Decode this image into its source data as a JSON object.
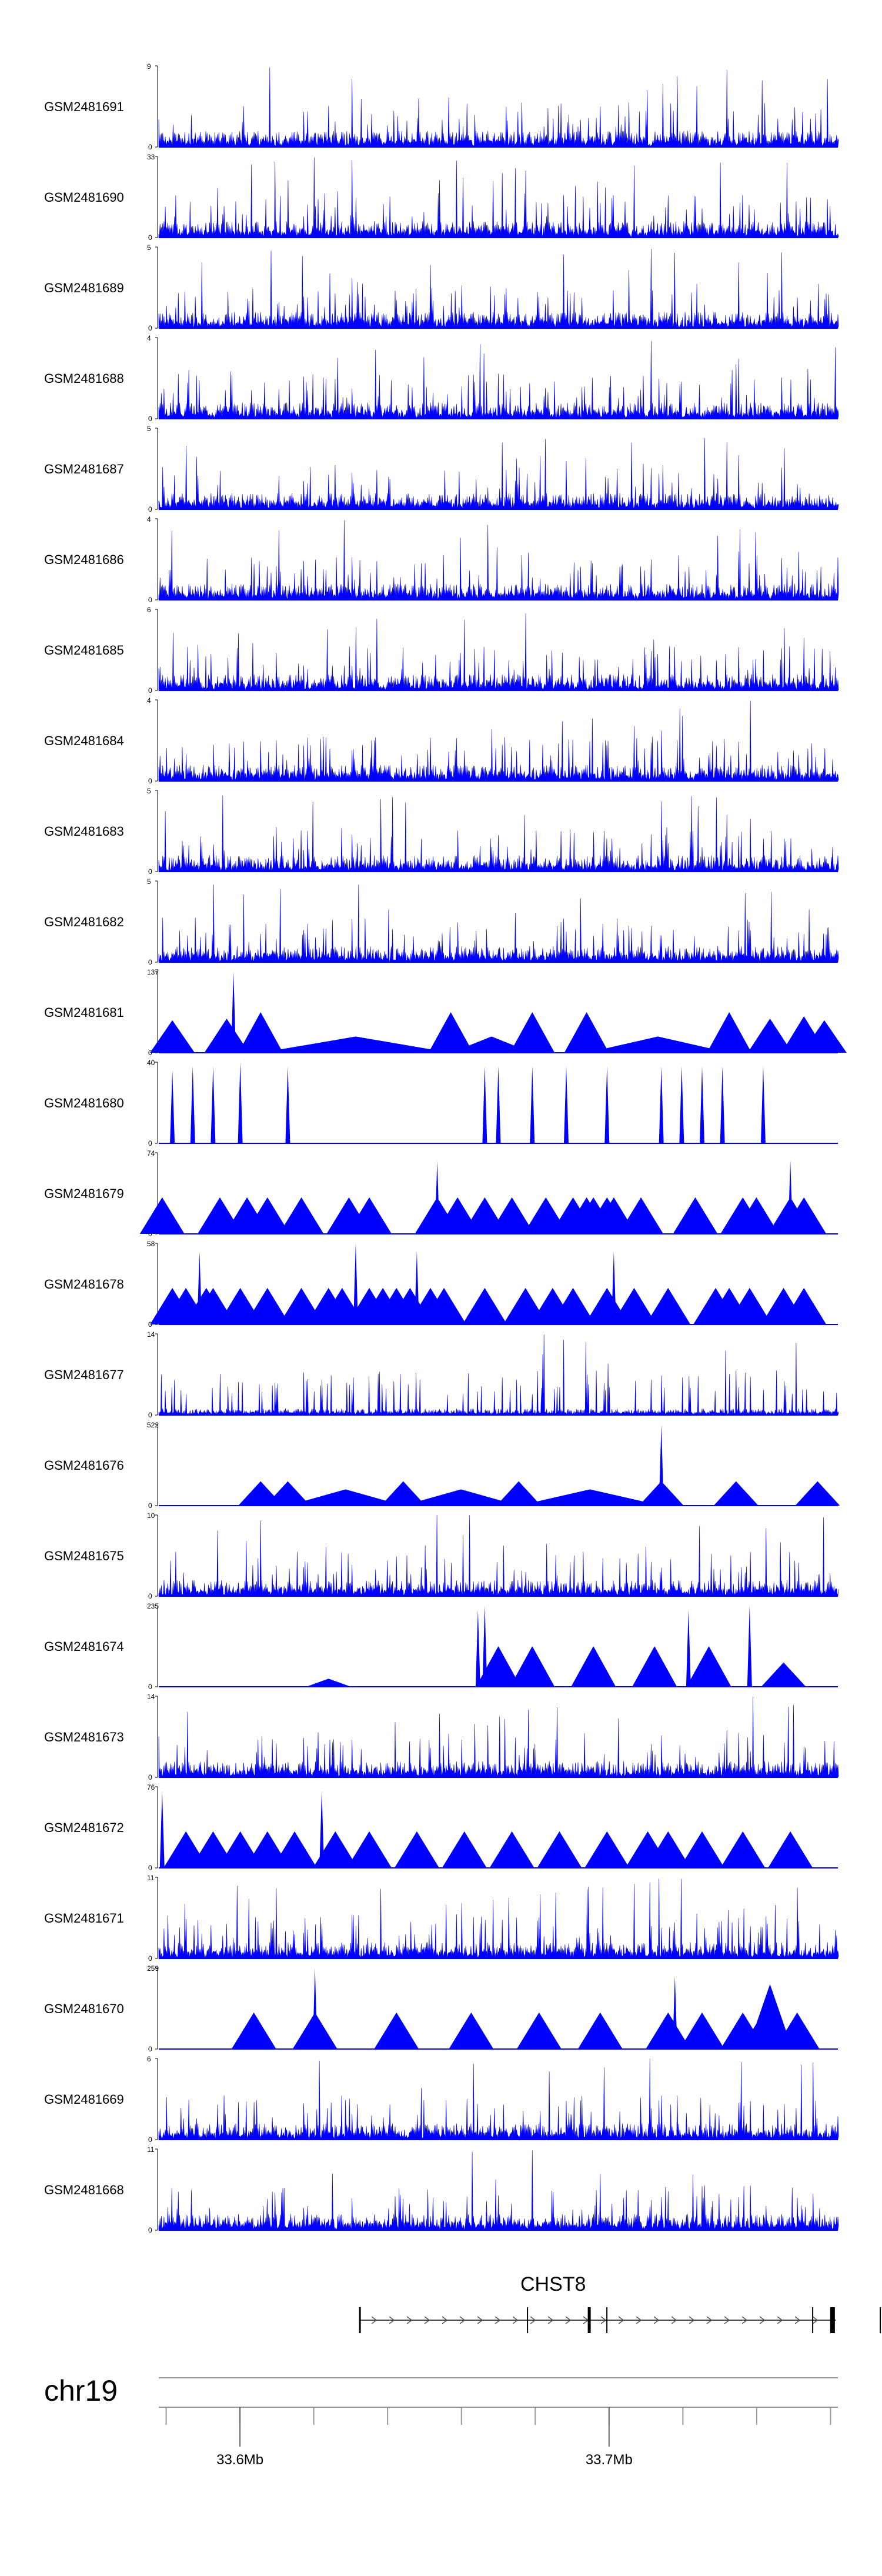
{
  "chart_data": {
    "type": "area",
    "title": "",
    "chromosome": "chr19",
    "x_range_mb": [
      33.578,
      33.762
    ],
    "x_ticks": [
      {
        "value": 33.6,
        "label": "33.6Mb"
      },
      {
        "value": 33.7,
        "label": "33.7Mb"
      }
    ],
    "tracks": [
      {
        "name": "GSM2481691",
        "ymax": 9,
        "style": "dense",
        "seed": 11
      },
      {
        "name": "GSM2481690",
        "ymax": 33,
        "style": "mixed",
        "seed": 12
      },
      {
        "name": "GSM2481689",
        "ymax": 5,
        "style": "dense",
        "seed": 13
      },
      {
        "name": "GSM2481688",
        "ymax": 4,
        "style": "dense",
        "seed": 14
      },
      {
        "name": "GSM2481687",
        "ymax": 5,
        "style": "dense",
        "seed": 15
      },
      {
        "name": "GSM2481686",
        "ymax": 4,
        "style": "dense",
        "seed": 16
      },
      {
        "name": "GSM2481685",
        "ymax": 6,
        "style": "dense",
        "seed": 17
      },
      {
        "name": "GSM2481684",
        "ymax": 4,
        "style": "dense",
        "seed": 18
      },
      {
        "name": "GSM2481683",
        "ymax": 5,
        "style": "dense",
        "seed": 19
      },
      {
        "name": "GSM2481682",
        "ymax": 5,
        "style": "dense",
        "seed": 20
      },
      {
        "name": "GSM2481681",
        "ymax": 137,
        "style": "sparse",
        "peaks": [
          [
            0.02,
            0.4
          ],
          [
            0.1,
            0.42
          ],
          [
            0.15,
            0.5
          ],
          [
            0.11,
            1.0
          ],
          [
            0.43,
            0.5
          ],
          [
            0.55,
            0.5
          ],
          [
            0.63,
            0.5
          ],
          [
            0.84,
            0.5
          ],
          [
            0.9,
            0.42
          ],
          [
            0.95,
            0.45
          ],
          [
            0.98,
            0.4
          ]
        ]
      },
      {
        "name": "GSM2481680",
        "ymax": 40,
        "style": "sparse",
        "peaks": [
          [
            0.02,
            0.9
          ],
          [
            0.05,
            0.95
          ],
          [
            0.08,
            0.95
          ],
          [
            0.12,
            1.0
          ],
          [
            0.19,
            0.95
          ],
          [
            0.48,
            0.95
          ],
          [
            0.5,
            0.95
          ],
          [
            0.55,
            0.95
          ],
          [
            0.6,
            0.95
          ],
          [
            0.66,
            0.95
          ],
          [
            0.74,
            0.95
          ],
          [
            0.77,
            0.95
          ],
          [
            0.8,
            0.95
          ],
          [
            0.83,
            0.95
          ],
          [
            0.89,
            0.95
          ]
        ]
      },
      {
        "name": "GSM2481679",
        "ymax": 74,
        "style": "sparse",
        "peaks": [
          [
            0.005,
            0.45
          ],
          [
            0.09,
            0.45
          ],
          [
            0.13,
            0.45
          ],
          [
            0.16,
            0.45
          ],
          [
            0.21,
            0.45
          ],
          [
            0.28,
            0.45
          ],
          [
            0.41,
            0.45
          ],
          [
            0.44,
            0.45
          ],
          [
            0.48,
            0.45
          ],
          [
            0.52,
            0.45
          ],
          [
            0.57,
            0.45
          ],
          [
            0.61,
            0.45
          ],
          [
            0.64,
            0.45
          ],
          [
            0.67,
            0.45
          ],
          [
            0.71,
            0.45
          ],
          [
            0.79,
            0.45
          ],
          [
            0.86,
            0.45
          ],
          [
            0.88,
            0.45
          ],
          [
            0.93,
            0.45
          ],
          [
            0.95,
            0.45
          ],
          [
            0.41,
            0.9
          ],
          [
            0.93,
            0.9
          ],
          [
            0.66,
            0.45
          ],
          [
            0.63,
            0.45
          ],
          [
            0.31,
            0.45
          ]
        ]
      },
      {
        "name": "GSM2481678",
        "ymax": 58,
        "style": "sparse",
        "peaks": [
          [
            0.02,
            0.45
          ],
          [
            0.04,
            0.45
          ],
          [
            0.06,
            0.9
          ],
          [
            0.07,
            0.45
          ],
          [
            0.08,
            0.45
          ],
          [
            0.12,
            0.45
          ],
          [
            0.16,
            0.45
          ],
          [
            0.21,
            0.45
          ],
          [
            0.25,
            0.45
          ],
          [
            0.27,
            0.45
          ],
          [
            0.29,
            1.0
          ],
          [
            0.31,
            0.45
          ],
          [
            0.33,
            0.45
          ],
          [
            0.35,
            0.45
          ],
          [
            0.37,
            0.45
          ],
          [
            0.38,
            0.9
          ],
          [
            0.4,
            0.45
          ],
          [
            0.42,
            0.45
          ],
          [
            0.48,
            0.45
          ],
          [
            0.54,
            0.45
          ],
          [
            0.58,
            0.45
          ],
          [
            0.61,
            0.45
          ],
          [
            0.66,
            0.45
          ],
          [
            0.67,
            0.9
          ],
          [
            0.7,
            0.45
          ],
          [
            0.75,
            0.45
          ],
          [
            0.82,
            0.45
          ],
          [
            0.84,
            0.45
          ],
          [
            0.87,
            0.45
          ],
          [
            0.92,
            0.45
          ],
          [
            0.95,
            0.45
          ]
        ]
      },
      {
        "name": "GSM2481677",
        "ymax": 14,
        "style": "lowdense",
        "seed": 21
      },
      {
        "name": "GSM2481676",
        "ymax": 522,
        "style": "sparse",
        "peaks": [
          [
            0.15,
            0.3
          ],
          [
            0.19,
            0.3
          ],
          [
            0.36,
            0.3
          ],
          [
            0.53,
            0.3
          ],
          [
            0.74,
            0.3
          ],
          [
            0.74,
            1.0
          ],
          [
            0.85,
            0.3
          ],
          [
            0.97,
            0.3
          ]
        ]
      },
      {
        "name": "GSM2481675",
        "ymax": 10,
        "style": "dense",
        "seed": 22
      },
      {
        "name": "GSM2481674",
        "ymax": 235,
        "style": "sparse",
        "peaks": [
          [
            0.25,
            0.1
          ],
          [
            0.47,
            0.95
          ],
          [
            0.48,
            1.0
          ],
          [
            0.5,
            0.5
          ],
          [
            0.55,
            0.5
          ],
          [
            0.64,
            0.5
          ],
          [
            0.73,
            0.5
          ],
          [
            0.78,
            0.95
          ],
          [
            0.81,
            0.5
          ],
          [
            0.87,
            1.0
          ],
          [
            0.92,
            0.3
          ]
        ]
      },
      {
        "name": "GSM2481673",
        "ymax": 14,
        "style": "dense",
        "seed": 23
      },
      {
        "name": "GSM2481672",
        "ymax": 76,
        "style": "sparse",
        "peaks": [
          [
            0.005,
            0.95
          ],
          [
            0.04,
            0.45
          ],
          [
            0.08,
            0.45
          ],
          [
            0.12,
            0.45
          ],
          [
            0.16,
            0.45
          ],
          [
            0.2,
            0.45
          ],
          [
            0.24,
            0.95
          ],
          [
            0.26,
            0.45
          ],
          [
            0.31,
            0.45
          ],
          [
            0.38,
            0.45
          ],
          [
            0.45,
            0.45
          ],
          [
            0.52,
            0.45
          ],
          [
            0.59,
            0.45
          ],
          [
            0.66,
            0.45
          ],
          [
            0.72,
            0.45
          ],
          [
            0.75,
            0.45
          ],
          [
            0.8,
            0.45
          ],
          [
            0.86,
            0.45
          ],
          [
            0.93,
            0.45
          ]
        ]
      },
      {
        "name": "GSM2481671",
        "ymax": 11,
        "style": "dense",
        "seed": 24
      },
      {
        "name": "GSM2481670",
        "ymax": 259,
        "style": "sparse",
        "peaks": [
          [
            0.14,
            0.45
          ],
          [
            0.23,
            0.45
          ],
          [
            0.23,
            1.0
          ],
          [
            0.35,
            0.45
          ],
          [
            0.46,
            0.45
          ],
          [
            0.56,
            0.45
          ],
          [
            0.65,
            0.45
          ],
          [
            0.75,
            0.45
          ],
          [
            0.76,
            0.9
          ],
          [
            0.8,
            0.45
          ],
          [
            0.86,
            0.45
          ],
          [
            0.89,
            0.45
          ],
          [
            0.9,
            0.8
          ],
          [
            0.94,
            0.45
          ]
        ]
      },
      {
        "name": "GSM2481669",
        "ymax": 6,
        "style": "dense",
        "seed": 25
      },
      {
        "name": "GSM2481668",
        "ymax": 11,
        "style": "dense",
        "seed": 26
      }
    ],
    "gene": {
      "name": "CHST8",
      "start_mb": 33.6325,
      "end_mb": 33.7615,
      "strand": "+"
    }
  },
  "colors": {
    "signal": "#0000ff",
    "axis": "#000000",
    "gridline": "#999999"
  }
}
